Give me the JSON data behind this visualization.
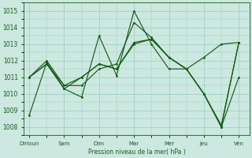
{
  "background_color": "#cce8e0",
  "grid_color": "#99ccbb",
  "line_color": "#1a5c1a",
  "xtick_labels": [
    "Dirloun",
    "Sam",
    "Dim",
    "Mar",
    "Mer",
    "Jeu",
    "Ven"
  ],
  "xtick_positions": [
    0,
    1,
    2,
    3,
    4,
    5,
    6
  ],
  "xlabel": "Pression niveau de la mer( hPa )",
  "ylim": [
    1007.5,
    1015.5
  ],
  "yticks": [
    1008,
    1009,
    1010,
    1011,
    1012,
    1013,
    1014,
    1015
  ],
  "line1_x": [
    0,
    0.5,
    1.0,
    1.5,
    2.0,
    2.5,
    3.0,
    3.5,
    4.0,
    4.5,
    5.0,
    5.5,
    6.0
  ],
  "line1_y": [
    1008.7,
    1011.9,
    1010.3,
    1009.8,
    1013.5,
    1011.1,
    1015.0,
    1013.0,
    1011.5,
    1011.5,
    1012.2,
    1013.0,
    1013.1
  ],
  "line2_x": [
    0,
    0.5,
    1.0,
    1.5,
    2.0,
    2.5,
    3.0,
    3.5,
    4.0,
    4.5,
    5.0,
    5.5,
    6.0
  ],
  "line2_y": [
    1011.0,
    1011.8,
    1010.5,
    1010.5,
    1011.5,
    1011.8,
    1014.3,
    1013.4,
    1012.2,
    1011.5,
    1010.0,
    1008.0,
    1011.0
  ],
  "line3_x": [
    0,
    0.5,
    1.0,
    1.5,
    2.0,
    2.5,
    3.0,
    3.5,
    4.0,
    4.5,
    5.0,
    5.5,
    6.0
  ],
  "line3_y": [
    1011.0,
    1012.0,
    1010.5,
    1011.0,
    1011.8,
    1011.5,
    1013.1,
    1013.3,
    1012.2,
    1011.5,
    1010.0,
    1008.0,
    1013.1
  ],
  "line4_x": [
    0,
    0.5,
    1.0,
    1.5,
    2.0,
    2.5,
    3.0,
    3.5,
    4.0,
    4.5,
    5.0,
    5.5,
    6.0
  ],
  "line4_y": [
    1011.0,
    1011.8,
    1010.3,
    1011.0,
    1011.8,
    1011.5,
    1013.0,
    1013.3,
    1012.2,
    1011.5,
    1010.0,
    1008.1,
    1013.1
  ],
  "xlim": [
    -0.15,
    6.3
  ]
}
